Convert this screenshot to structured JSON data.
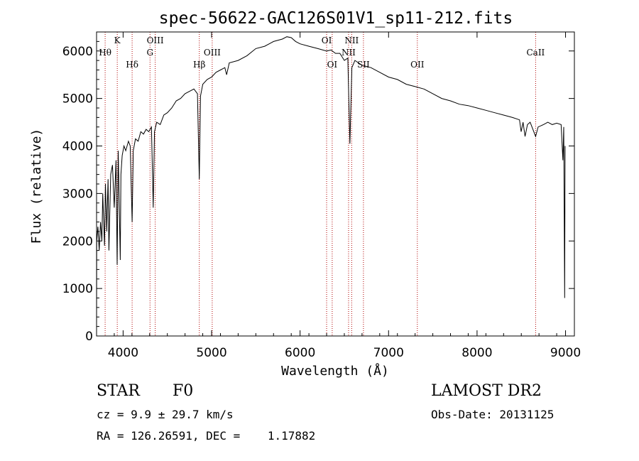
{
  "chart_data": {
    "type": "line",
    "title": "spec-56622-GAC126S01V1_sp11-212.fits",
    "xlabel": "Wavelength (Å)",
    "ylabel": "Flux (relative)",
    "xlim": [
      3700,
      9100
    ],
    "ylim": [
      0,
      6400
    ],
    "x_ticks": [
      4000,
      5000,
      6000,
      7000,
      8000,
      9000
    ],
    "y_ticks": [
      0,
      1000,
      2000,
      3000,
      4000,
      5000,
      6000
    ],
    "grid": false,
    "series": [
      {
        "line_color": "#000000",
        "points": [
          [
            3700,
            0
          ],
          [
            3702,
            2000
          ],
          [
            3715,
            2300
          ],
          [
            3730,
            1800
          ],
          [
            3745,
            2400
          ],
          [
            3760,
            2000
          ],
          [
            3770,
            3000
          ],
          [
            3790,
            1900
          ],
          [
            3800,
            3200
          ],
          [
            3815,
            2200
          ],
          [
            3830,
            3300
          ],
          [
            3840,
            1800
          ],
          [
            3860,
            3400
          ],
          [
            3880,
            3600
          ],
          [
            3900,
            2700
          ],
          [
            3920,
            3700
          ],
          [
            3933,
            1500
          ],
          [
            3945,
            3900
          ],
          [
            3968,
            1600
          ],
          [
            3975,
            3400
          ],
          [
            3990,
            3800
          ],
          [
            4010,
            4000
          ],
          [
            4030,
            3900
          ],
          [
            4060,
            4100
          ],
          [
            4080,
            4000
          ],
          [
            4102,
            2400
          ],
          [
            4115,
            3900
          ],
          [
            4140,
            4150
          ],
          [
            4170,
            4100
          ],
          [
            4200,
            4300
          ],
          [
            4230,
            4250
          ],
          [
            4260,
            4350
          ],
          [
            4290,
            4300
          ],
          [
            4320,
            4400
          ],
          [
            4340,
            2700
          ],
          [
            4355,
            4300
          ],
          [
            4380,
            4500
          ],
          [
            4420,
            4450
          ],
          [
            4460,
            4650
          ],
          [
            4500,
            4700
          ],
          [
            4550,
            4800
          ],
          [
            4600,
            4950
          ],
          [
            4650,
            5000
          ],
          [
            4700,
            5100
          ],
          [
            4750,
            5150
          ],
          [
            4800,
            5200
          ],
          [
            4840,
            5100
          ],
          [
            4861,
            3300
          ],
          [
            4875,
            5050
          ],
          [
            4900,
            5300
          ],
          [
            4950,
            5400
          ],
          [
            5000,
            5450
          ],
          [
            5050,
            5550
          ],
          [
            5100,
            5600
          ],
          [
            5150,
            5650
          ],
          [
            5170,
            5500
          ],
          [
            5200,
            5750
          ],
          [
            5300,
            5800
          ],
          [
            5400,
            5900
          ],
          [
            5500,
            6050
          ],
          [
            5600,
            6100
          ],
          [
            5700,
            6200
          ],
          [
            5800,
            6250
          ],
          [
            5850,
            6300
          ],
          [
            5900,
            6280
          ],
          [
            5950,
            6200
          ],
          [
            6000,
            6150
          ],
          [
            6100,
            6100
          ],
          [
            6200,
            6050
          ],
          [
            6300,
            6000
          ],
          [
            6350,
            6020
          ],
          [
            6400,
            5950
          ],
          [
            6450,
            5950
          ],
          [
            6500,
            5800
          ],
          [
            6540,
            5850
          ],
          [
            6563,
            4050
          ],
          [
            6585,
            5650
          ],
          [
            6620,
            5800
          ],
          [
            6700,
            5700
          ],
          [
            6800,
            5650
          ],
          [
            6900,
            5550
          ],
          [
            7000,
            5450
          ],
          [
            7100,
            5400
          ],
          [
            7200,
            5300
          ],
          [
            7300,
            5250
          ],
          [
            7400,
            5200
          ],
          [
            7500,
            5100
          ],
          [
            7600,
            5000
          ],
          [
            7700,
            4950
          ],
          [
            7800,
            4880
          ],
          [
            7900,
            4850
          ],
          [
            8000,
            4800
          ],
          [
            8100,
            4750
          ],
          [
            8200,
            4700
          ],
          [
            8300,
            4650
          ],
          [
            8400,
            4600
          ],
          [
            8480,
            4550
          ],
          [
            8498,
            4300
          ],
          [
            8520,
            4500
          ],
          [
            8542,
            4200
          ],
          [
            8570,
            4450
          ],
          [
            8600,
            4500
          ],
          [
            8662,
            4200
          ],
          [
            8690,
            4400
          ],
          [
            8750,
            4450
          ],
          [
            8800,
            4500
          ],
          [
            8850,
            4450
          ],
          [
            8900,
            4480
          ],
          [
            8950,
            4450
          ],
          [
            8970,
            3700
          ],
          [
            8980,
            4400
          ],
          [
            8990,
            800
          ],
          [
            8995,
            4000
          ]
        ]
      }
    ],
    "annotations": [
      {
        "label": "Hθ",
        "line_x": 3797,
        "label_row": 2
      },
      {
        "label": "K",
        "line_x": 3934,
        "label_row": 1
      },
      {
        "label": "Hδ",
        "line_x": 4102,
        "label_row": 3
      },
      {
        "label": "G",
        "line_x": 4304,
        "label_row": 2
      },
      {
        "label": "OIII",
        "line_x": 4363,
        "label_row": 1
      },
      {
        "label": "Hβ",
        "line_x": 4861,
        "label_row": 3
      },
      {
        "label": "OIII",
        "line_x": 5007,
        "label_row": 2
      },
      {
        "label": "OI",
        "line_x": 6300,
        "label_row": 1
      },
      {
        "label": "OI",
        "line_x": 6363,
        "label_row": 3
      },
      {
        "label": "NII",
        "line_x": 6548,
        "label_row": 2
      },
      {
        "label": "NII",
        "line_x": 6583,
        "label_row": 1
      },
      {
        "label": "SII",
        "line_x": 6716,
        "label_row": 3
      },
      {
        "label": "OII",
        "line_x": 7325,
        "label_row": 3
      },
      {
        "label": "CaII",
        "line_x": 8662,
        "label_row": 2
      }
    ],
    "annotation_line_color": "#b00000"
  },
  "info": {
    "object_class": "STAR",
    "subclass": "F0",
    "survey": "LAMOST DR2",
    "cz": "cz = 9.9 ± 29.7 km/s",
    "obs_date": "Obs-Date: 20131125",
    "coords": "RA = 126.26591, DEC =    1.17882"
  }
}
